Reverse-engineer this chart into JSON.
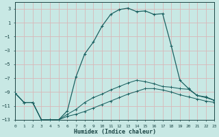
{
  "xlabel": "Humidex (Indice chaleur)",
  "background_color": "#c8e8e4",
  "grid_color": "#d8b8b8",
  "line_color": "#1a6060",
  "xlim": [
    0,
    23
  ],
  "ylim": [
    -13,
    4
  ],
  "yticks": [
    3,
    1,
    -1,
    -3,
    -5,
    -7,
    -9,
    -11,
    -13
  ],
  "xticks": [
    0,
    1,
    2,
    3,
    4,
    5,
    6,
    7,
    8,
    9,
    10,
    11,
    12,
    13,
    14,
    15,
    16,
    17,
    18,
    19,
    20,
    21,
    22,
    23
  ],
  "curve1_x": [
    0,
    1,
    2,
    3,
    4,
    5,
    6,
    7,
    8,
    9,
    10,
    11,
    12,
    13,
    14,
    15,
    16,
    17,
    18,
    19,
    20,
    21,
    22,
    23
  ],
  "curve1_y": [
    -9.2,
    -10.5,
    -10.5,
    -13.0,
    -13.0,
    -13.0,
    -11.7,
    -6.8,
    -3.5,
    -1.8,
    0.5,
    2.2,
    2.9,
    3.1,
    2.6,
    2.7,
    2.2,
    2.3,
    -2.3,
    -7.3,
    -8.5,
    -9.5,
    -9.7,
    -10.2
  ],
  "curve2_x": [
    0,
    1,
    2,
    3,
    4,
    5,
    6,
    7,
    8,
    9,
    10,
    11,
    12,
    13,
    14,
    15,
    16,
    17,
    18,
    19,
    20,
    21,
    22,
    23
  ],
  "curve2_y": [
    -9.2,
    -10.5,
    -10.5,
    -13.0,
    -13.0,
    -13.0,
    -12.2,
    -11.5,
    -10.5,
    -9.8,
    -9.3,
    -8.7,
    -8.2,
    -7.7,
    -7.3,
    -7.5,
    -7.8,
    -8.2,
    -8.3,
    -8.5,
    -8.6,
    -9.5,
    -9.8,
    -10.2
  ],
  "curve3_x": [
    0,
    1,
    2,
    3,
    4,
    5,
    6,
    7,
    8,
    9,
    10,
    11,
    12,
    13,
    14,
    15,
    16,
    17,
    18,
    19,
    20,
    21,
    22,
    23
  ],
  "curve3_y": [
    -9.2,
    -10.5,
    -10.5,
    -13.0,
    -13.0,
    -13.0,
    -12.5,
    -12.2,
    -11.8,
    -11.3,
    -10.8,
    -10.3,
    -9.8,
    -9.3,
    -8.9,
    -8.5,
    -8.5,
    -8.7,
    -9.0,
    -9.4,
    -9.7,
    -10.0,
    -10.3,
    -10.5
  ]
}
